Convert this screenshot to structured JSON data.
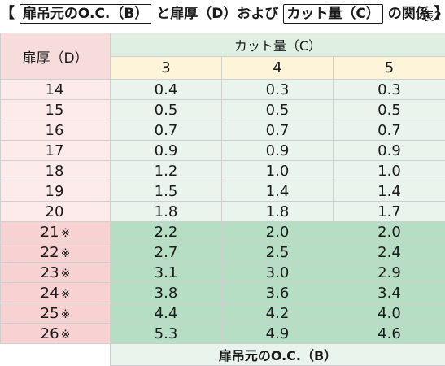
{
  "title": {
    "open_bracket": "【",
    "term_b": "扉吊元のO.C.（B）",
    "to": "と扉厚（D）および",
    "term_c": "カット量（C）",
    "relation": "の関係",
    "close_bracket": "】",
    "table_no": "表2"
  },
  "table": {
    "row_header": "扉厚（D）",
    "group_header": "カット量（C）",
    "columns": [
      "3",
      "4",
      "5"
    ],
    "rows": [
      {
        "d": "14",
        "mark": "",
        "v": [
          "0.4",
          "0.3",
          "0.3"
        ]
      },
      {
        "d": "15",
        "mark": "",
        "v": [
          "0.5",
          "0.5",
          "0.5"
        ]
      },
      {
        "d": "16",
        "mark": "",
        "v": [
          "0.7",
          "0.7",
          "0.7"
        ]
      },
      {
        "d": "17",
        "mark": "",
        "v": [
          "0.9",
          "0.9",
          "0.9"
        ]
      },
      {
        "d": "18",
        "mark": "",
        "v": [
          "1.2",
          "1.0",
          "1.0"
        ]
      },
      {
        "d": "19",
        "mark": "",
        "v": [
          "1.5",
          "1.4",
          "1.4"
        ]
      },
      {
        "d": "20",
        "mark": "",
        "v": [
          "1.8",
          "1.8",
          "1.7"
        ]
      },
      {
        "d": "21",
        "mark": "※",
        "v": [
          "2.2",
          "2.0",
          "2.0"
        ]
      },
      {
        "d": "22",
        "mark": "※",
        "v": [
          "2.7",
          "2.5",
          "2.4"
        ]
      },
      {
        "d": "23",
        "mark": "※",
        "v": [
          "3.1",
          "3.0",
          "2.9"
        ]
      },
      {
        "d": "24",
        "mark": "※",
        "v": [
          "3.8",
          "3.6",
          "3.4"
        ]
      },
      {
        "d": "25",
        "mark": "※",
        "v": [
          "4.4",
          "4.2",
          "4.0"
        ]
      },
      {
        "d": "26",
        "mark": "※",
        "v": [
          "5.3",
          "4.9",
          "4.6"
        ]
      }
    ],
    "footer": "扉吊元のO.C.（B）"
  },
  "colors": {
    "header_pink": "#f7dcdc",
    "header_yellow": "#fdf4d9",
    "light_green": "#e9f5ec",
    "dark_green": "#b5dec4",
    "light_pink": "#fdeaea",
    "dark_pink": "#f8d2d2"
  }
}
